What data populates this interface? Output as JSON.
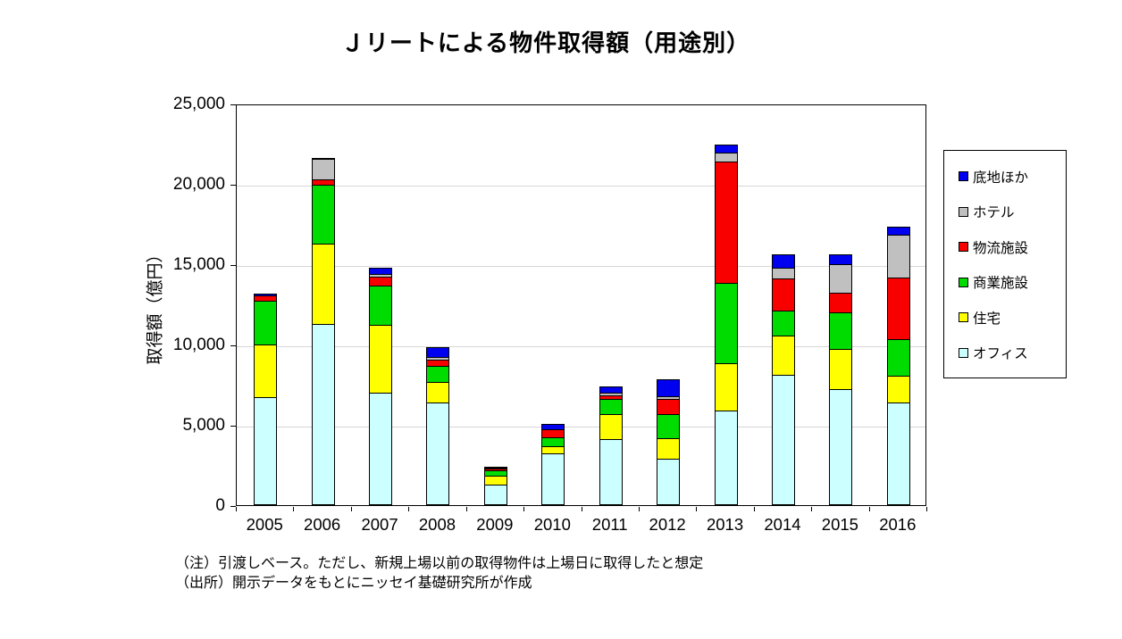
{
  "title": "Ｊリートによる物件取得額（用途別）",
  "y_axis": {
    "label": "取得額（億円）",
    "ticks": [
      "0",
      "5,000",
      "10,000",
      "15,000",
      "20,000",
      "25,000"
    ],
    "tick_values": [
      0,
      5000,
      10000,
      15000,
      20000,
      25000
    ],
    "max": 25000
  },
  "notes": [
    "（注）引渡しベース。ただし、新規上場以前の取得物件は上場日に取得したと想定",
    "（出所）開示データをもとにニッセイ基礎研究所が作成"
  ],
  "chart_data": {
    "type": "bar",
    "stacked": true,
    "title": "Ｊリートによる物件取得額（用途別）",
    "xlabel": "",
    "ylabel": "取得額（億円）",
    "unit": "億円",
    "ylim": [
      0,
      25000
    ],
    "grid": true,
    "gridline_values": [
      5000,
      10000,
      15000,
      20000
    ],
    "legend_position": "right",
    "legend_order_top_to_bottom": [
      "底地ほか",
      "ホテル",
      "物流施設",
      "商業施設",
      "住宅",
      "オフィス"
    ],
    "categories": [
      "2005",
      "2006",
      "2007",
      "2008",
      "2009",
      "2010",
      "2011",
      "2012",
      "2013",
      "2014",
      "2015",
      "2016"
    ],
    "series": [
      {
        "name": "オフィス",
        "color": "#CCFFFF",
        "values": [
          6700,
          11300,
          7000,
          6400,
          1300,
          3200,
          4100,
          2900,
          5900,
          8100,
          7200,
          6400
        ]
      },
      {
        "name": "住宅",
        "color": "#FFFF00",
        "values": [
          3350,
          5050,
          4300,
          1300,
          600,
          550,
          1600,
          1300,
          3000,
          2500,
          2600,
          1700
        ]
      },
      {
        "name": "商業施設",
        "color": "#00DC00",
        "values": [
          2800,
          3700,
          2500,
          1100,
          400,
          600,
          1000,
          1600,
          5050,
          1600,
          2300,
          2350
        ]
      },
      {
        "name": "物流施設",
        "color": "#F80000",
        "values": [
          350,
          420,
          610,
          450,
          150,
          550,
          300,
          1000,
          7600,
          2100,
          1300,
          3900
        ]
      },
      {
        "name": "ホテル",
        "color": "#C0C0C0",
        "values": [
          0,
          1300,
          180,
          200,
          50,
          0,
          200,
          200,
          600,
          700,
          1800,
          2700
        ]
      },
      {
        "name": "底地ほか",
        "color": "#0000F0",
        "values": [
          200,
          150,
          450,
          650,
          30,
          400,
          450,
          1100,
          600,
          900,
          700,
          550
        ]
      }
    ],
    "totals": [
      13400,
      21920,
      15040,
      10100,
      2530,
      5300,
      7650,
      8100,
      22750,
      15900,
      15900,
      17600
    ]
  }
}
